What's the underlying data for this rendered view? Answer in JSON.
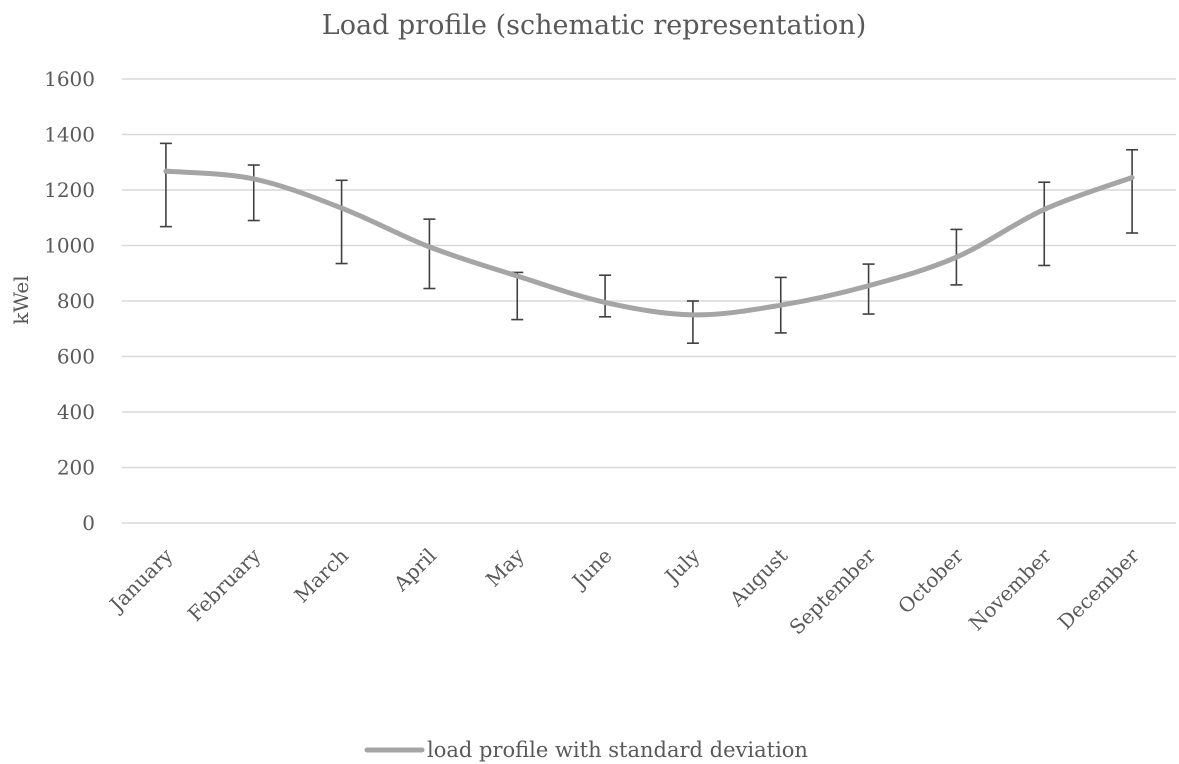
{
  "chart_data": {
    "type": "line",
    "title": "Load profile (schematic representation)",
    "xlabel": "",
    "ylabel": "kWel",
    "ylim": [
      0,
      1600
    ],
    "yticks": [
      0,
      200,
      400,
      600,
      800,
      1000,
      1200,
      1400,
      1600
    ],
    "grid": true,
    "legend_position": "bottom",
    "categories": [
      "January",
      "February",
      "March",
      "April",
      "May",
      "June",
      "July",
      "August",
      "September",
      "October",
      "November",
      "December"
    ],
    "series": [
      {
        "name": "load profile with standard deviation",
        "color": "#a5a5a5",
        "values": [
          1268,
          1240,
          1135,
          995,
          890,
          795,
          750,
          785,
          855,
          958,
          1130,
          1245
        ],
        "error_low": [
          1068,
          1090,
          935,
          845,
          733,
          743,
          648,
          685,
          753,
          858,
          928,
          1045
        ],
        "error_high": [
          1368,
          1290,
          1235,
          1095,
          903,
          893,
          800,
          885,
          933,
          1058,
          1228,
          1345
        ]
      }
    ]
  }
}
